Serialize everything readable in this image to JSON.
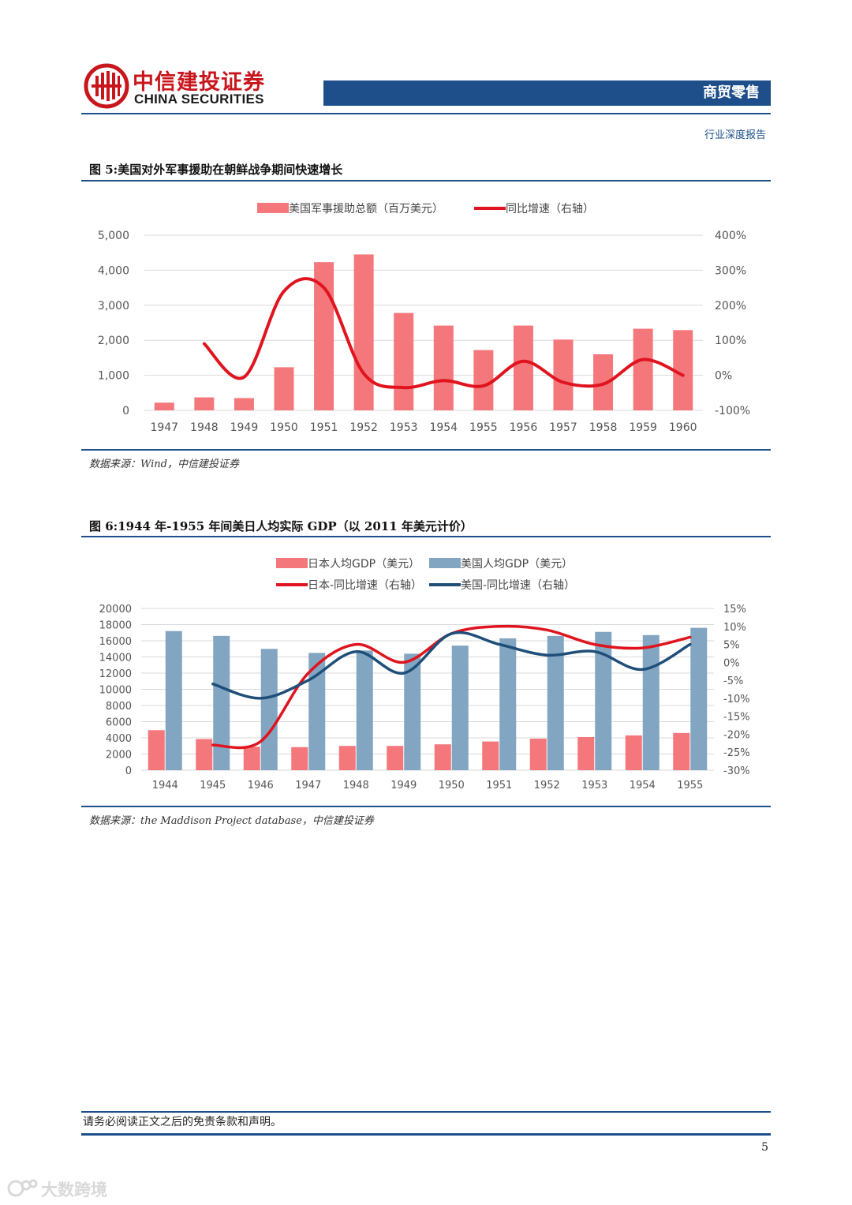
{
  "header": {
    "company_cn": "中信建投证券",
    "company_en": "CHINA SECURITIES",
    "sector": "商贸零售",
    "report_type": "行业深度报告"
  },
  "colors": {
    "brand_red": "#c8161d",
    "brand_blue": "#1e4f8a",
    "bar_pink": "#f4777c",
    "bar_blue": "#82a5c2",
    "line_red": "#e0141e",
    "line_navy": "#1f4e79"
  },
  "figure5": {
    "title": "图 5:美国对外军事援助在朝鲜战争期间快速增长",
    "source": "数据来源：Wind，中信建投证券",
    "chart_data": {
      "type": "bar",
      "categories": [
        "1947",
        "1948",
        "1949",
        "1950",
        "1951",
        "1952",
        "1953",
        "1954",
        "1955",
        "1956",
        "1957",
        "1958",
        "1959",
        "1960"
      ],
      "series": [
        {
          "name": "美国军事援助总额（百万美元）",
          "type": "bar",
          "axis": "left",
          "values": [
            220,
            370,
            350,
            1230,
            4230,
            4450,
            2780,
            2420,
            1720,
            2420,
            2020,
            1600,
            2330,
            2290
          ]
        },
        {
          "name": "同比增速（右轴）",
          "type": "line",
          "axis": "right",
          "values": [
            null,
            90,
            -5,
            240,
            250,
            5,
            -35,
            -15,
            -30,
            40,
            -20,
            -25,
            45,
            0
          ]
        }
      ],
      "ylim_left": [
        0,
        5000
      ],
      "yticks_left": [
        "5,000",
        "4,000",
        "3,000",
        "2,000",
        "1,000",
        "0"
      ],
      "ylim_right": [
        -100,
        400
      ],
      "yticks_right": [
        "400%",
        "300%",
        "200%",
        "100%",
        "0%",
        "-100%"
      ],
      "grid": true,
      "legend": "top"
    }
  },
  "figure6": {
    "title": "图 6:1944 年-1955 年间美日人均实际 GDP（以 2011 年美元计价）",
    "source": "数据来源：the Maddison Project database，中信建投证券",
    "chart_data": {
      "type": "bar",
      "categories": [
        "1944",
        "1945",
        "1946",
        "1947",
        "1948",
        "1949",
        "1950",
        "1951",
        "1952",
        "1953",
        "1954",
        "1955"
      ],
      "series": [
        {
          "name": "日本人均GDP（美元）",
          "type": "bar",
          "axis": "left",
          "values": [
            4950,
            3850,
            2900,
            2850,
            3000,
            3000,
            3200,
            3550,
            3900,
            4100,
            4300,
            4600
          ]
        },
        {
          "name": "美国人均GDP（美元）",
          "type": "bar",
          "axis": "left",
          "values": [
            17200,
            16600,
            15000,
            14500,
            14800,
            14400,
            15400,
            16300,
            16600,
            17100,
            16700,
            17600
          ]
        },
        {
          "name": "日本-同比增速（右轴）",
          "type": "line",
          "axis": "right",
          "values": [
            null,
            -23,
            -22,
            -3,
            5,
            0,
            8,
            10,
            9,
            5,
            4,
            7
          ]
        },
        {
          "name": "美国-同比增速（右轴）",
          "type": "line",
          "axis": "right",
          "values": [
            null,
            -6,
            -10,
            -5,
            3,
            -3,
            8,
            5,
            2,
            3,
            -2,
            5
          ]
        }
      ],
      "ylim_left": [
        0,
        20000
      ],
      "yticks_left": [
        "20000",
        "18000",
        "16000",
        "14000",
        "12000",
        "10000",
        "8000",
        "6000",
        "4000",
        "2000",
        "0"
      ],
      "ylim_right": [
        -30,
        15
      ],
      "yticks_right": [
        "15%",
        "10%",
        "5%",
        "0%",
        "-5%",
        "-10%",
        "-15%",
        "-20%",
        "-25%",
        "-30%"
      ],
      "grid": true,
      "legend": "top"
    }
  },
  "footer": {
    "disclaimer": "请务必阅读正文之后的免责条款和声明。",
    "page_number": "5"
  },
  "watermark": {
    "text": "大数跨境",
    "icon": "watermark-logo-icon"
  }
}
